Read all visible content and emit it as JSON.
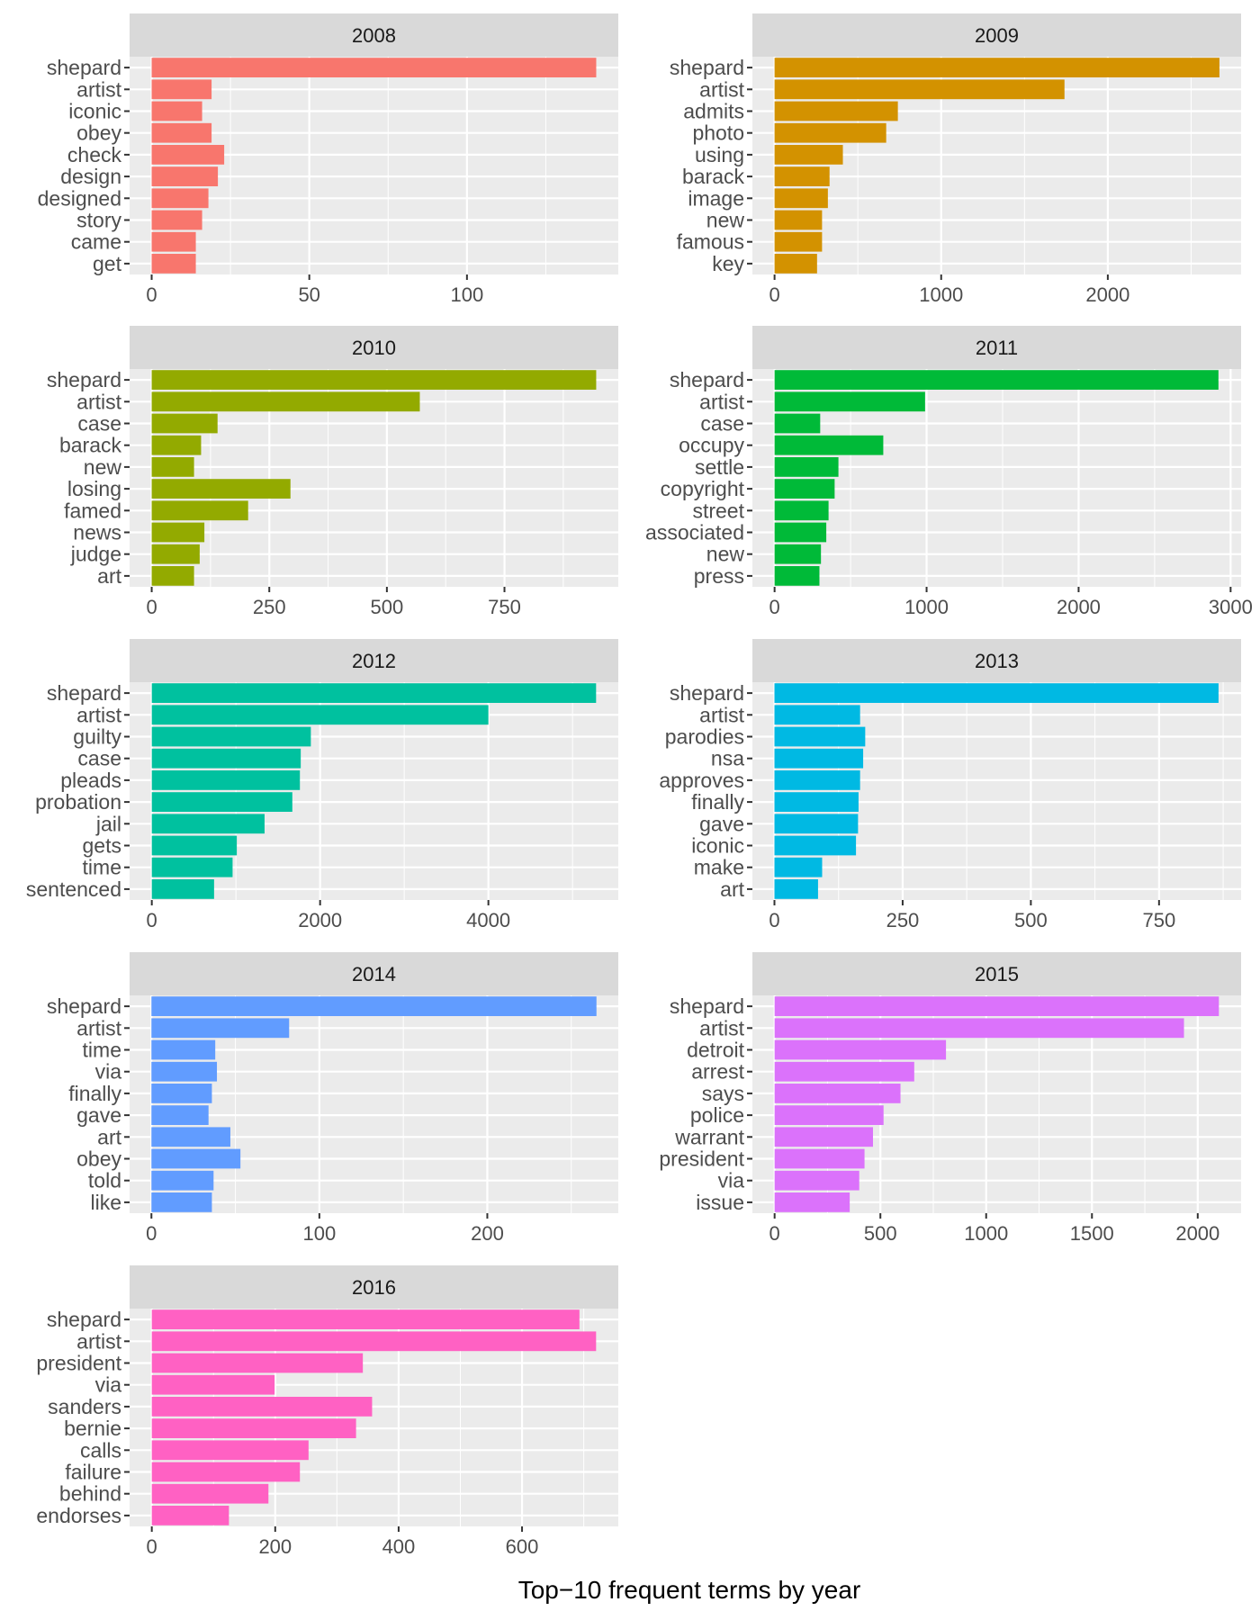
{
  "chart_data": {
    "type": "bar",
    "orientation": "horizontal",
    "xlabel": "Top−10 frequent terms by year",
    "ylabel": "",
    "grid": true,
    "legend": "none",
    "facets": [
      {
        "title": "2008",
        "color": "#F8766D",
        "xlim": [
          -7,
          148
        ],
        "ticks": [
          0,
          50,
          100
        ],
        "tick_labels": [
          "0",
          "50",
          "100"
        ],
        "categories": [
          "shepard",
          "artist",
          "iconic",
          "obey",
          "check",
          "design",
          "designed",
          "story",
          "came",
          "get"
        ],
        "values": [
          141,
          19,
          16,
          19,
          23,
          21,
          18,
          16,
          14,
          14
        ]
      },
      {
        "title": "2009",
        "color": "#D39200",
        "xlim": [
          -133,
          2800
        ],
        "ticks": [
          0,
          1000,
          2000
        ],
        "tick_labels": [
          "0",
          "1000",
          "2000"
        ],
        "categories": [
          "shepard",
          "artist",
          "admits",
          "photo",
          "using",
          "barack",
          "image",
          "new",
          "famous",
          "key"
        ],
        "values": [
          2670,
          1740,
          740,
          670,
          410,
          330,
          320,
          285,
          285,
          255
        ]
      },
      {
        "title": "2010",
        "color": "#93AA00",
        "xlim": [
          -47,
          992
        ],
        "ticks": [
          0,
          250,
          500,
          750
        ],
        "tick_labels": [
          "0",
          "250",
          "500",
          "750"
        ],
        "categories": [
          "shepard",
          "artist",
          "case",
          "barack",
          "new",
          "losing",
          "famed",
          "news",
          "judge",
          "art"
        ],
        "values": [
          945,
          570,
          140,
          105,
          90,
          295,
          205,
          112,
          102,
          90
        ]
      },
      {
        "title": "2011",
        "color": "#00BA38",
        "xlim": [
          -146,
          3069
        ],
        "ticks": [
          0,
          1000,
          2000,
          3000
        ],
        "tick_labels": [
          "0",
          "1000",
          "2000",
          "3000"
        ],
        "categories": [
          "shepard",
          "artist",
          "case",
          "occupy",
          "settle",
          "copyright",
          "street",
          "associated",
          "new",
          "press"
        ],
        "values": [
          2920,
          990,
          300,
          715,
          420,
          395,
          355,
          340,
          305,
          295
        ]
      },
      {
        "title": "2012",
        "color": "#00C19F",
        "xlim": [
          -264,
          5544
        ],
        "ticks": [
          0,
          2000,
          4000
        ],
        "tick_labels": [
          "0",
          "2000",
          "4000"
        ],
        "categories": [
          "shepard",
          "artist",
          "guilty",
          "case",
          "pleads",
          "probation",
          "jail",
          "gets",
          "time",
          "sentenced"
        ],
        "values": [
          5280,
          4000,
          1890,
          1770,
          1760,
          1670,
          1340,
          1010,
          960,
          740
        ]
      },
      {
        "title": "2013",
        "color": "#00B9E3",
        "xlim": [
          -43,
          910
        ],
        "ticks": [
          0,
          250,
          500,
          750
        ],
        "tick_labels": [
          "0",
          "250",
          "500",
          "750"
        ],
        "categories": [
          "shepard",
          "artist",
          "parodies",
          "nsa",
          "approves",
          "finally",
          "gave",
          "iconic",
          "make",
          "art"
        ],
        "values": [
          866,
          167,
          177,
          173,
          167,
          164,
          163,
          159,
          93,
          85
        ]
      },
      {
        "title": "2014",
        "color": "#619CFF",
        "xlim": [
          -13,
          278
        ],
        "ticks": [
          0,
          100,
          200
        ],
        "tick_labels": [
          "0",
          "100",
          "200"
        ],
        "categories": [
          "shepard",
          "artist",
          "time",
          "via",
          "finally",
          "gave",
          "art",
          "obey",
          "told",
          "like"
        ],
        "values": [
          265,
          82,
          38,
          39,
          36,
          34,
          47,
          53,
          37,
          36
        ]
      },
      {
        "title": "2015",
        "color": "#DB72FB",
        "xlim": [
          -105,
          2205
        ],
        "ticks": [
          0,
          500,
          1000,
          1500,
          2000
        ],
        "tick_labels": [
          "0",
          "500",
          "1000",
          "1500",
          "2000"
        ],
        "categories": [
          "shepard",
          "artist",
          "detroit",
          "arrest",
          "says",
          "police",
          "warrant",
          "president",
          "via",
          "issue"
        ],
        "values": [
          2100,
          1935,
          810,
          660,
          595,
          515,
          465,
          425,
          400,
          355
        ]
      },
      {
        "title": "2016",
        "color": "#FF61C3",
        "xlim": [
          -36,
          756
        ],
        "ticks": [
          0,
          200,
          400,
          600
        ],
        "tick_labels": [
          "0",
          "200",
          "400",
          "600"
        ],
        "categories": [
          "shepard",
          "artist",
          "president",
          "via",
          "sanders",
          "bernie",
          "calls",
          "failure",
          "behind",
          "endorses"
        ],
        "values": [
          693,
          720,
          342,
          199,
          357,
          331,
          254,
          240,
          189,
          125
        ]
      }
    ]
  }
}
